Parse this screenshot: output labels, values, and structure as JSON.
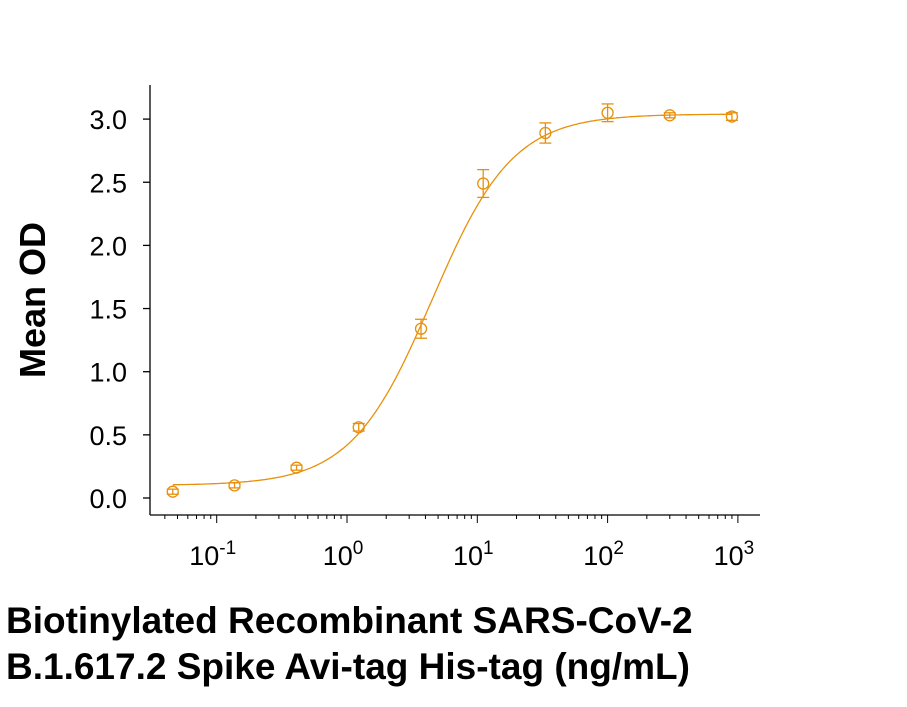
{
  "chart_data": {
    "type": "scatter",
    "title": "",
    "xlabel_lines": [
      "Biotinylated Recombinant SARS-CoV-2",
      "B.1.617.2 Spike Avi-tag His-tag (ng/mL)"
    ],
    "ylabel": "Mean OD",
    "x_scale": "log",
    "xlim": [
      0.03,
      1200
    ],
    "ylim": [
      -0.12,
      3.25
    ],
    "x_ticks": [
      {
        "base": "10",
        "exp": "-1",
        "value": 0.1
      },
      {
        "base": "10",
        "exp": "0",
        "value": 1
      },
      {
        "base": "10",
        "exp": "1",
        "value": 10
      },
      {
        "base": "10",
        "exp": "2",
        "value": 100
      },
      {
        "base": "10",
        "exp": "3",
        "value": 1000
      }
    ],
    "y_ticks": [
      "0.0",
      "0.5",
      "1.0",
      "1.5",
      "2.0",
      "2.5",
      "3.0"
    ],
    "grid": false,
    "color": "#E8900C",
    "series": [
      {
        "x": [
          0.046,
          0.137,
          0.41,
          1.23,
          3.7,
          11.1,
          33.3,
          100,
          300,
          900
        ],
        "y": [
          0.05,
          0.1,
          0.24,
          0.56,
          1.34,
          2.49,
          2.89,
          3.05,
          3.03,
          3.02
        ],
        "error": [
          0.02,
          0.02,
          0.02,
          0.03,
          0.075,
          0.11,
          0.08,
          0.07,
          0.02,
          0.03
        ]
      }
    ],
    "fit": {
      "model": "4PL",
      "bottom": 0.1,
      "top": 3.04,
      "ec50": 4.5,
      "hill": 1.4
    }
  }
}
